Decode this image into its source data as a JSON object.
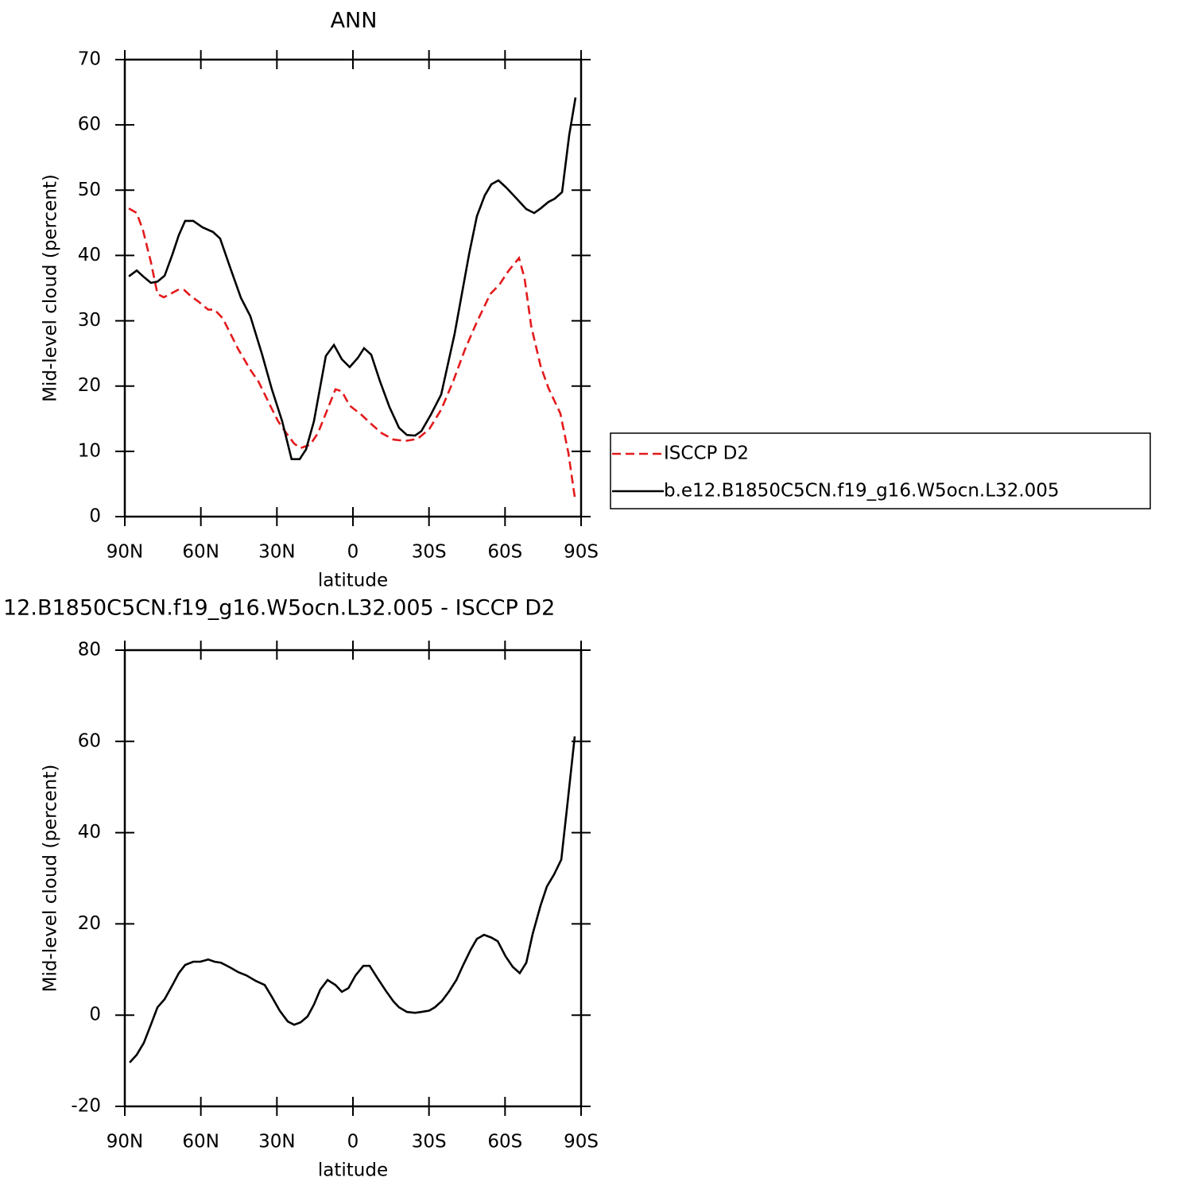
{
  "chart_data": [
    {
      "type": "line",
      "title": "ANN",
      "xlabel": "latitude",
      "ylabel": "Mid-level cloud (percent)",
      "xlim": [
        90,
        -90
      ],
      "xticks": [
        {
          "value": 90,
          "label": "90N"
        },
        {
          "value": 60,
          "label": "60N"
        },
        {
          "value": 30,
          "label": "30N"
        },
        0,
        {
          "value": -30,
          "label": "30S"
        },
        {
          "value": -60,
          "label": "60S"
        },
        {
          "value": -90,
          "label": "90S"
        }
      ],
      "ylim": [
        0,
        70
      ],
      "yticks": [
        0,
        10,
        20,
        30,
        40,
        50,
        60,
        70
      ],
      "legend": "right",
      "series": [
        {
          "name": "ISCCP D2",
          "color": "#e41a1c",
          "dash": "dashed",
          "x": [
            88.4,
            85.3,
            82.8,
            79.7,
            77.1,
            74.6,
            72.1,
            68.7,
            66.5,
            64.0,
            60.8,
            57.1,
            54.6,
            51.4,
            48.3,
            45.2,
            40.5,
            37.3,
            32.6,
            29.5,
            26.3,
            23.2,
            20.7,
            16.9,
            13.8,
            10.7,
            6.9,
            4.4,
            1.3,
            -3.4,
            -6.6,
            -11.3,
            -16.0,
            -20.7,
            -25.4,
            -30.1,
            -34.8,
            -39.5,
            -44.2,
            -48.9,
            -54.2,
            -57.7,
            -61.5,
            -65.5,
            -67.7,
            -70.3,
            -74.0,
            -77.1,
            -81.8,
            -85.0,
            -87.5
          ],
          "values": [
            47.2,
            46.5,
            43.8,
            39,
            34.1,
            33.6,
            34.1,
            34.8,
            34.7,
            33.8,
            32.9,
            31.7,
            31.7,
            30.4,
            28,
            25.6,
            22.5,
            20.7,
            17,
            14.6,
            12.8,
            11.2,
            10.5,
            11,
            12.8,
            15.8,
            19.5,
            19.2,
            17,
            15.6,
            14.4,
            12.8,
            11.8,
            11.6,
            11.9,
            13.4,
            16.4,
            20.7,
            25.6,
            29.8,
            34.1,
            35.5,
            37.7,
            39.6,
            36.5,
            29.2,
            23.1,
            19.7,
            15.8,
            9.7,
            3.0
          ]
        },
        {
          "name": "b.e12.B1850C5CN.f19_g16.W5ocn.L32.005",
          "color": "#000000",
          "dash": "solid",
          "x": [
            88.4,
            85.3,
            82.8,
            79.7,
            77.1,
            74.3,
            71.2,
            68.7,
            66.2,
            63.0,
            59.3,
            55.2,
            52.4,
            48.3,
            44.2,
            40.5,
            35.8,
            32.0,
            27.9,
            24.2,
            21.0,
            18.5,
            15.4,
            10.7,
            7.5,
            4.4,
            1.3,
            -1.9,
            -4.4,
            -7.2,
            -10.7,
            -14.4,
            -18.2,
            -21.3,
            -24.5,
            -27.0,
            -30.7,
            -34.8,
            -40.1,
            -45.8,
            -48.9,
            -52.0,
            -54.6,
            -57.4,
            -60.5,
            -64.6,
            -68.4,
            -71.5,
            -74.0,
            -77.1,
            -79.6,
            -82.5,
            -85.3,
            -87.8
          ],
          "values": [
            36.8,
            37.7,
            36.8,
            35.8,
            36,
            36.9,
            40.2,
            43.1,
            45.3,
            45.3,
            44.3,
            43.6,
            42.6,
            38,
            33.5,
            30.7,
            24.8,
            19.5,
            14.6,
            8.8,
            8.8,
            10.3,
            14.6,
            24.6,
            26.3,
            24.1,
            22.9,
            24.3,
            25.8,
            24.8,
            20.7,
            16.8,
            13.6,
            12.5,
            12.4,
            13.1,
            15.6,
            18.7,
            28,
            40.2,
            46,
            49.2,
            50.9,
            51.5,
            50.4,
            48.7,
            47.1,
            46.5,
            47.2,
            48.2,
            48.7,
            49.7,
            58.4,
            64.2
          ]
        }
      ]
    },
    {
      "type": "line",
      "title": "12.B1850C5CN.f19_g16.W5ocn.L32.005 - ISCCP D2",
      "xlabel": "latitude",
      "ylabel": "Mid-level cloud (percent)",
      "xlim": [
        90,
        -90
      ],
      "xticks": [
        {
          "value": 90,
          "label": "90N"
        },
        {
          "value": 60,
          "label": "60N"
        },
        {
          "value": 30,
          "label": "30N"
        },
        0,
        {
          "value": -30,
          "label": "30S"
        },
        {
          "value": -60,
          "label": "60S"
        },
        {
          "value": -90,
          "label": "90S"
        }
      ],
      "ylim": [
        -20,
        80
      ],
      "yticks": [
        -20,
        0,
        20,
        40,
        60,
        80
      ],
      "series": [
        {
          "color": "#000000",
          "dash": "solid",
          "x": [
            88.1,
            85.3,
            82.5,
            79.7,
            77.1,
            74.3,
            71.2,
            68.7,
            66.2,
            63.0,
            60.2,
            57.1,
            54.6,
            52.1,
            48.3,
            45.2,
            42.0,
            38.3,
            34.8,
            32.0,
            28.9,
            25.7,
            23.2,
            20.7,
            17.9,
            15.4,
            12.9,
            10.0,
            6.9,
            4.4,
            1.8,
            -1.0,
            -4.1,
            -6.6,
            -9.8,
            -12.9,
            -16.0,
            -18.2,
            -21.3,
            -24.5,
            -27.0,
            -30.1,
            -32.3,
            -35.1,
            -37.9,
            -40.8,
            -43.6,
            -46.4,
            -48.9,
            -51.7,
            -54.6,
            -57.1,
            -60.2,
            -63.0,
            -65.8,
            -68.4,
            -70.9,
            -74.0,
            -76.5,
            -79.3,
            -82.2,
            -84.7,
            -87.5
          ],
          "values": [
            -10.4,
            -8.7,
            -6.1,
            -2.1,
            1.7,
            3.5,
            6.6,
            9.2,
            11.0,
            11.7,
            11.7,
            12.2,
            11.7,
            11.5,
            10.4,
            9.4,
            8.7,
            7.5,
            6.6,
            4.0,
            1.0,
            -1.4,
            -2.1,
            -1.6,
            -0.3,
            2.3,
            5.6,
            7.7,
            6.6,
            5.1,
            5.9,
            8.7,
            10.8,
            10.8,
            8.0,
            5.4,
            3.0,
            1.7,
            0.7,
            0.5,
            0.7,
            1.0,
            1.7,
            3.1,
            5.2,
            7.7,
            11.1,
            14.3,
            16.7,
            17.6,
            17.0,
            16.2,
            12.9,
            10.6,
            9.2,
            11.5,
            17.8,
            24.0,
            28.2,
            30.8,
            34.1,
            46.7,
            61.1
          ]
        }
      ]
    }
  ]
}
